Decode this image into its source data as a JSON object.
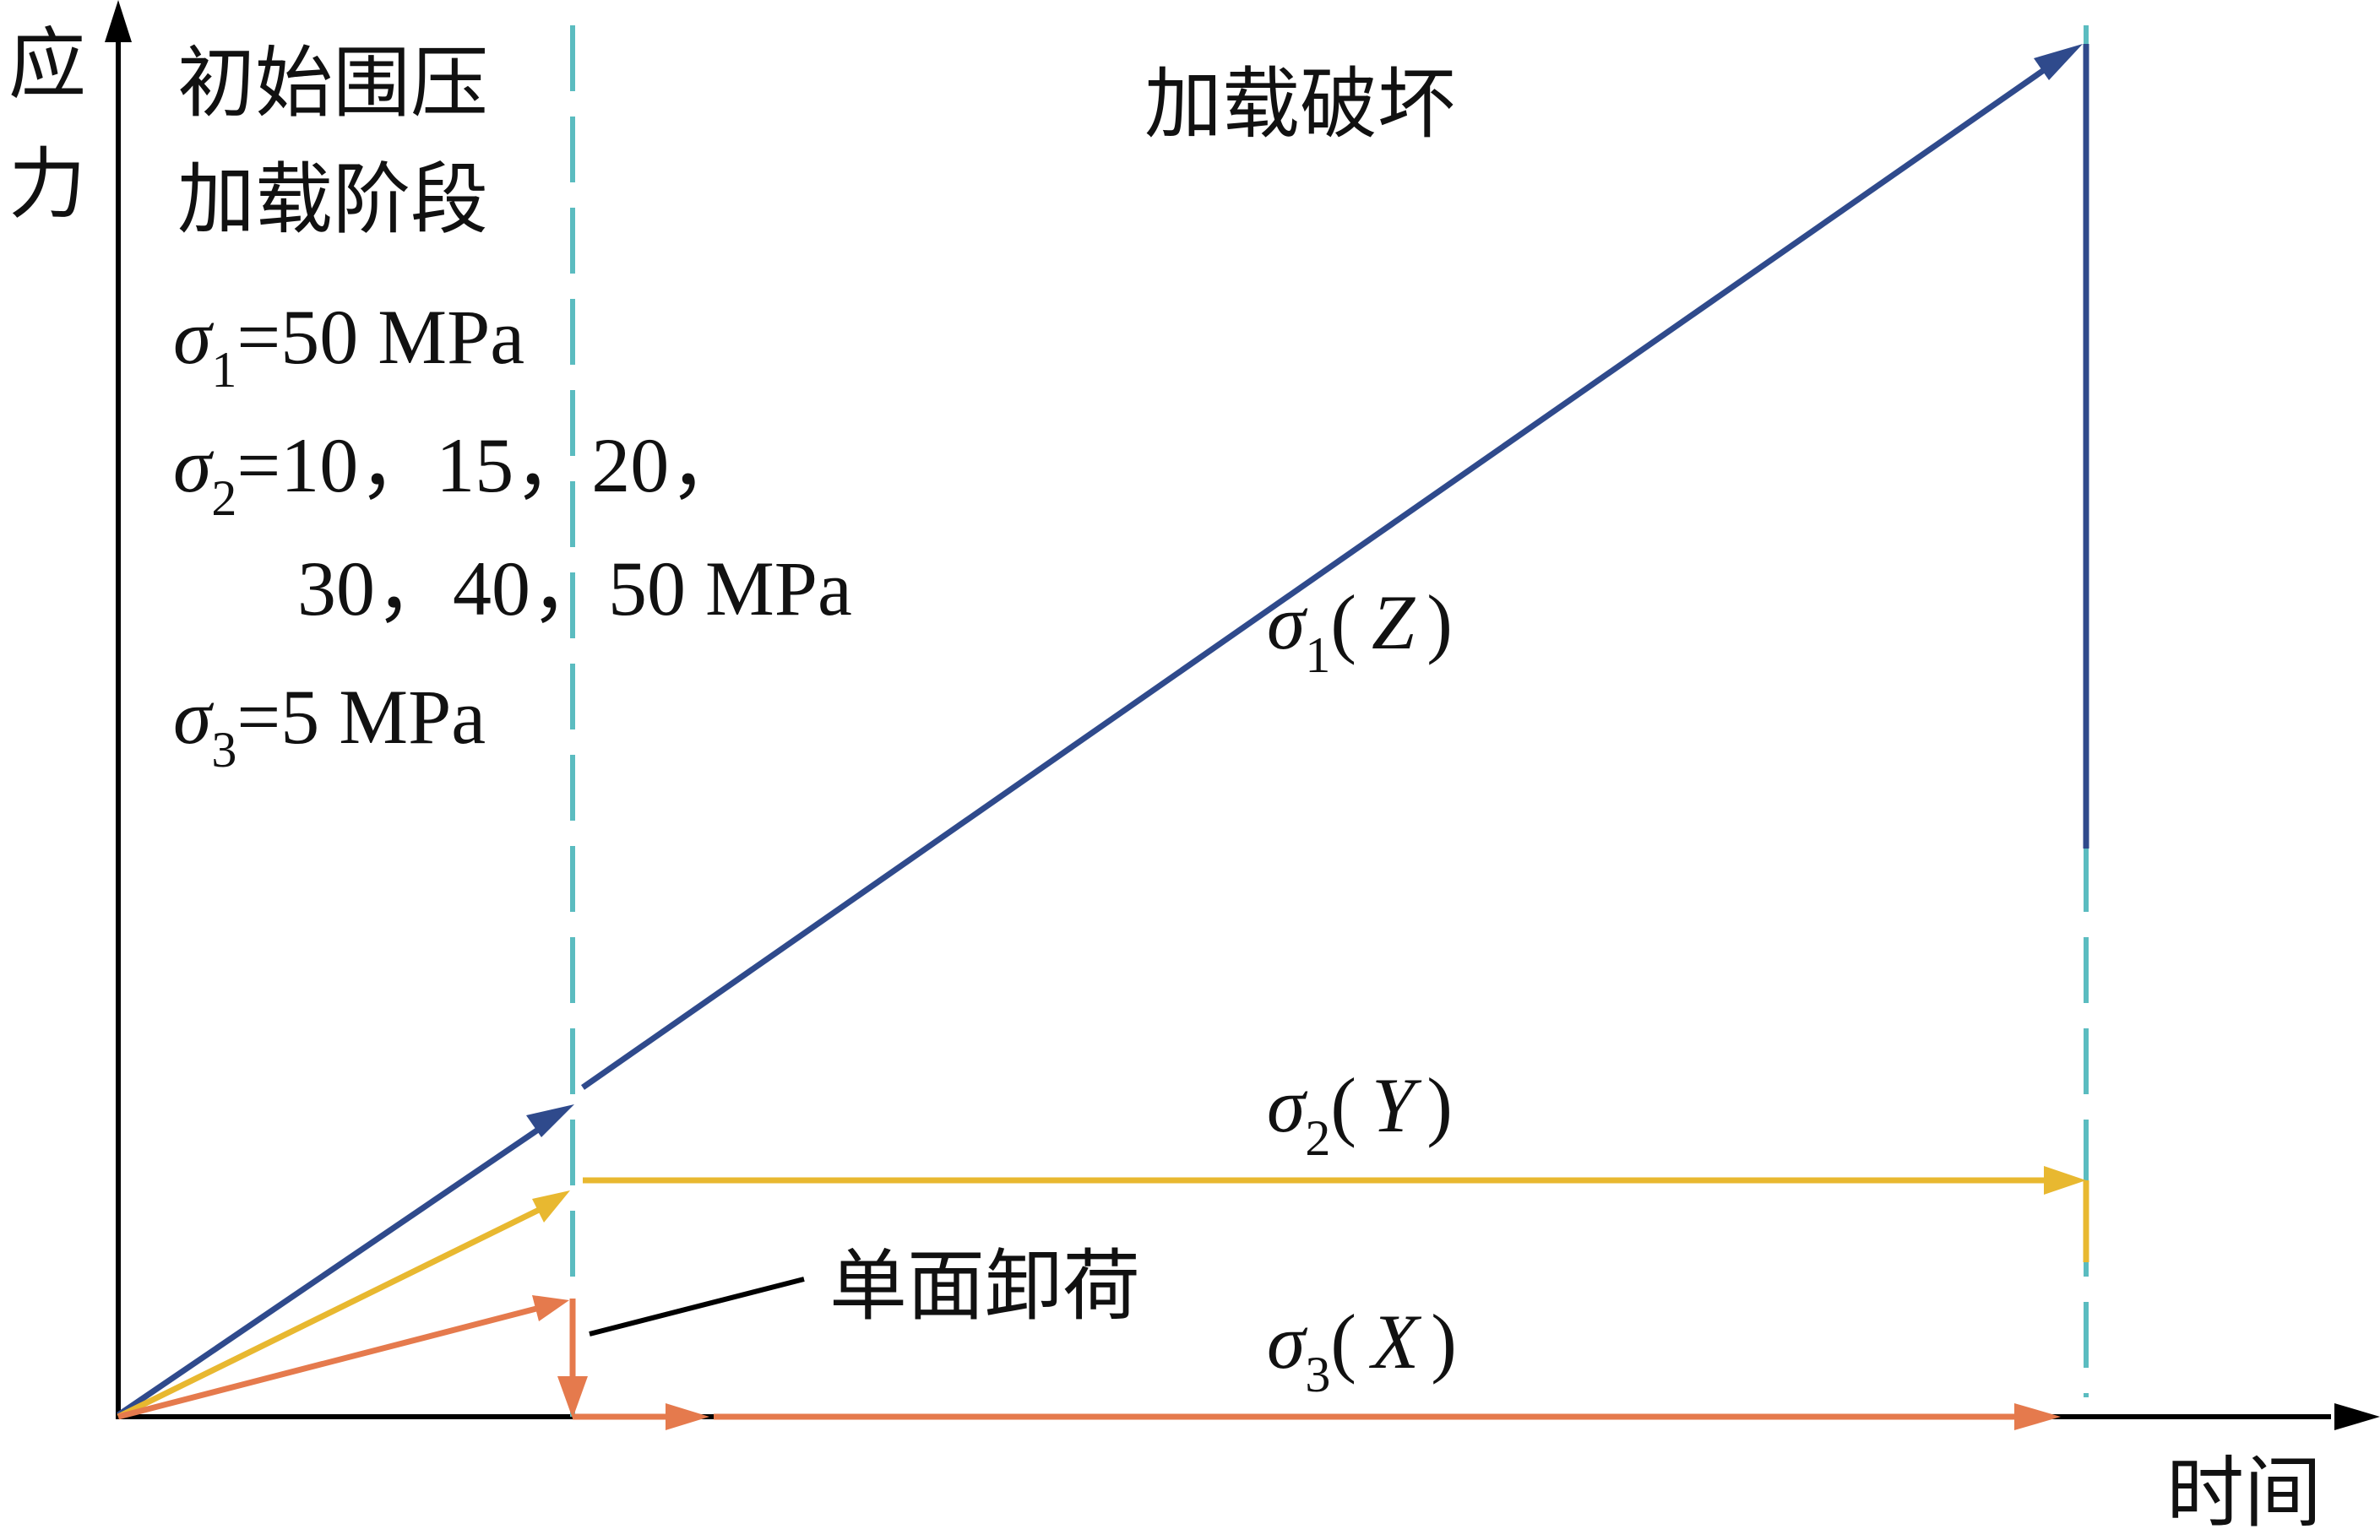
{
  "axes": {
    "y_label": "应力",
    "x_label": "时间"
  },
  "stages": {
    "initial": [
      "初始围压",
      "加载阶段"
    ],
    "failure": "加载破坏"
  },
  "conditions": {
    "sigma1": {
      "symbol": "σ",
      "sub": "1",
      "value": "=50 MPa"
    },
    "sigma2": {
      "symbol": "σ",
      "sub": "2",
      "value_line1": "=10，15，20，",
      "value_line2": "30，40，50 MPa"
    },
    "sigma3": {
      "symbol": "σ",
      "sub": "3",
      "value": "=5 MPa"
    }
  },
  "curves": {
    "sigma1": {
      "symbol": "σ",
      "sub": "1",
      "open": "(",
      "axis": "Z",
      "close": ")"
    },
    "sigma2": {
      "symbol": "σ",
      "sub": "2",
      "open": "(",
      "axis": "Y",
      "close": ")"
    },
    "sigma3": {
      "symbol": "σ",
      "sub": "3",
      "open": "(",
      "axis": "X",
      "close": ")"
    }
  },
  "annotation": "单面卸荷",
  "colors": {
    "sigma1": "#2f4a8c",
    "sigma2": "#e8b830",
    "sigma3": "#e57a4d",
    "divider": "#5bbcc0",
    "axis": "#000000"
  }
}
